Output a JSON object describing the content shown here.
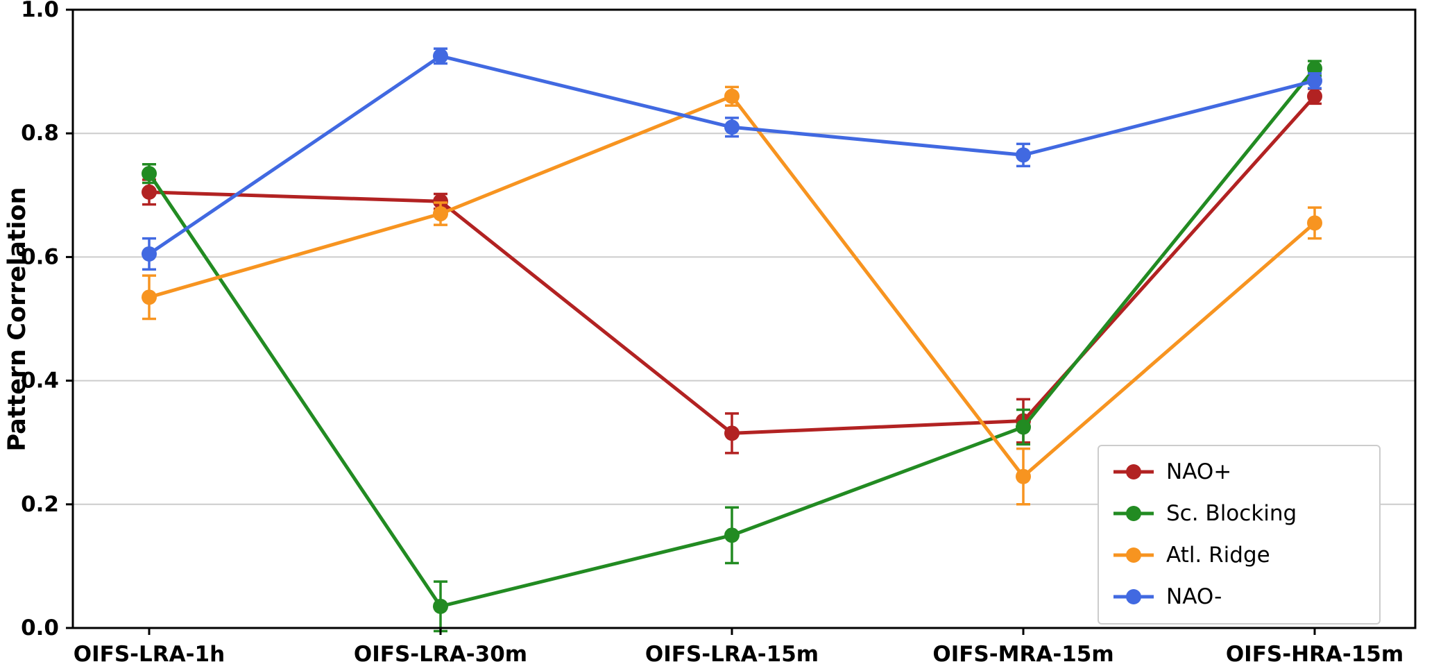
{
  "chart_data": {
    "type": "line",
    "title": "",
    "xlabel": "",
    "ylabel": "Pattern Correlation",
    "ylim": [
      0.0,
      1.0
    ],
    "yticks": [
      0.0,
      0.2,
      0.4,
      0.6,
      0.8,
      1.0
    ],
    "ytick_labels": [
      "0.0",
      "0.2",
      "0.4",
      "0.6",
      "0.8",
      "1.0"
    ],
    "grid": true,
    "grid_color": "#cccccc",
    "axis_color": "#000000",
    "legend_position": "lower right",
    "categories": [
      "OIFS-LRA-1h",
      "OIFS-LRA-30m",
      "OIFS-LRA-15m",
      "OIFS-MRA-15m",
      "OIFS-HRA-15m"
    ],
    "series": [
      {
        "name": "NAO+",
        "color": "#b22222",
        "values": [
          0.705,
          0.69,
          0.315,
          0.335,
          0.86
        ],
        "errors": [
          0.02,
          0.012,
          0.032,
          0.035,
          0.012
        ]
      },
      {
        "name": "Sc. Blocking",
        "color": "#228b22",
        "values": [
          0.735,
          0.035,
          0.15,
          0.325,
          0.905
        ],
        "errors": [
          0.015,
          0.04,
          0.045,
          0.028,
          0.012
        ]
      },
      {
        "name": "Atl. Ridge",
        "color": "#f79420",
        "values": [
          0.535,
          0.67,
          0.86,
          0.245,
          0.655
        ],
        "errors": [
          0.035,
          0.018,
          0.015,
          0.045,
          0.025
        ]
      },
      {
        "name": "NAO-",
        "color": "#4169e1",
        "values": [
          0.605,
          0.925,
          0.81,
          0.765,
          0.885
        ],
        "errors": [
          0.025,
          0.012,
          0.015,
          0.018,
          0.012
        ]
      }
    ]
  }
}
